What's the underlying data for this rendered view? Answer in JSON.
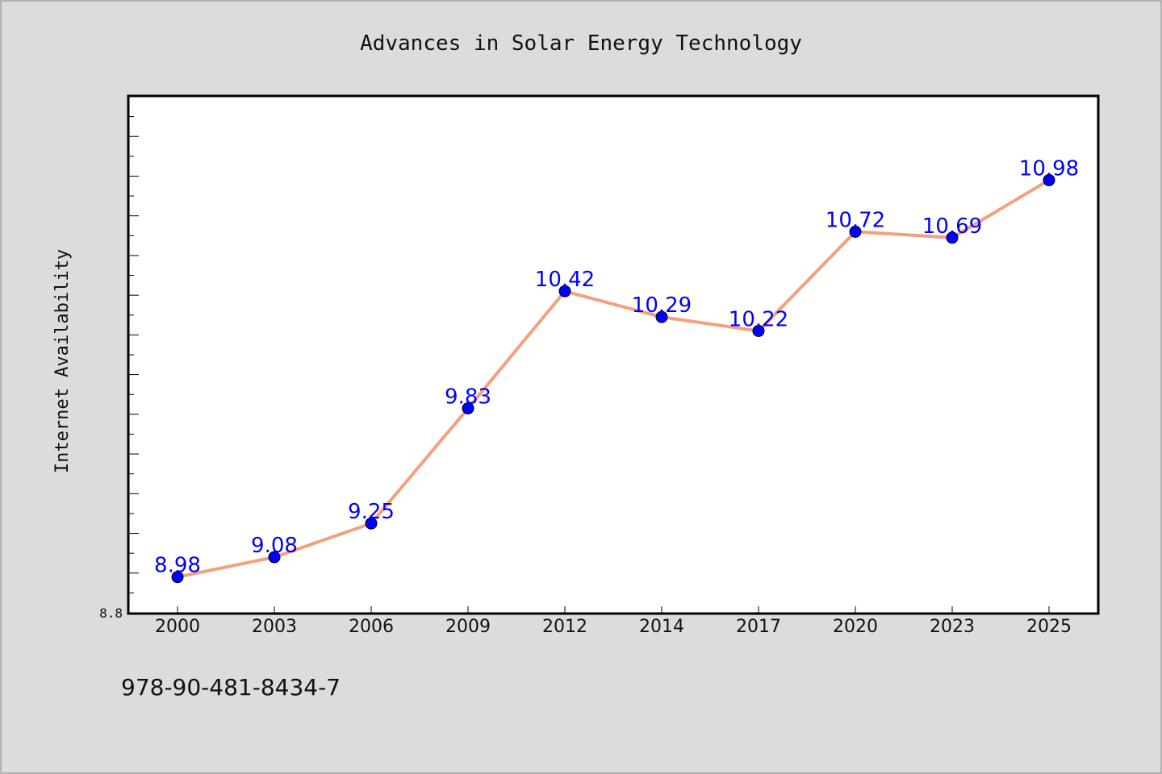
{
  "isbn": "978-90-481-8434-7",
  "chart_data": {
    "type": "line",
    "title": "Advances in Solar Energy Technology",
    "xlabel": "",
    "ylabel": "Internet Availability",
    "categories": [
      "2000",
      "2003",
      "2006",
      "2009",
      "2012",
      "2014",
      "2017",
      "2020",
      "2023",
      "2025"
    ],
    "series": [
      {
        "values": [
          8.98,
          9.08,
          9.25,
          9.83,
          10.42,
          10.29,
          10.22,
          10.72,
          10.69,
          10.98
        ]
      }
    ],
    "data_labels": [
      "8.98",
      "9.08",
      "9.25",
      "9.83",
      "10.42",
      "10.29",
      "10.22",
      "10.72",
      "10.69",
      "10.98"
    ],
    "ylim": [
      8.8,
      11.4
    ],
    "y_tick_labels": [
      "8.8"
    ],
    "grid": false,
    "colors": {
      "line": "#f4a07e",
      "marker": "#0000ff",
      "label": "#0000ff",
      "plot_bg": "#ffffff",
      "page_bg": "#dcdcdc"
    }
  }
}
